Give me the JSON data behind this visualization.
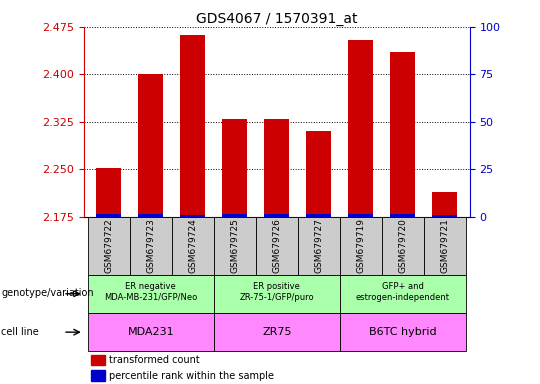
{
  "title": "GDS4067 / 1570391_at",
  "samples": [
    "GSM679722",
    "GSM679723",
    "GSM679724",
    "GSM679725",
    "GSM679726",
    "GSM679727",
    "GSM679719",
    "GSM679720",
    "GSM679721"
  ],
  "red_values": [
    2.252,
    2.4,
    2.462,
    2.33,
    2.33,
    2.31,
    2.455,
    2.435,
    2.215
  ],
  "blue_heights": [
    0.004,
    0.004,
    0.003,
    0.004,
    0.004,
    0.004,
    0.004,
    0.004,
    0.003
  ],
  "ylim_left": [
    2.175,
    2.475
  ],
  "yticks_left": [
    2.175,
    2.25,
    2.325,
    2.4,
    2.475
  ],
  "yticks_right": [
    0,
    25,
    50,
    75,
    100
  ],
  "ylim_right": [
    0,
    100
  ],
  "bar_bottom": 2.175,
  "red_color": "#cc0000",
  "blue_color": "#0000cc",
  "groups": [
    {
      "label": "ER negative\nMDA-MB-231/GFP/Neo",
      "start": 0,
      "end": 3
    },
    {
      "label": "ER positive\nZR-75-1/GFP/puro",
      "start": 3,
      "end": 6
    },
    {
      "label": "GFP+ and\nestrogen-independent",
      "start": 6,
      "end": 9
    }
  ],
  "cell_lines": [
    {
      "label": "MDA231",
      "start": 0,
      "end": 3
    },
    {
      "label": "ZR75",
      "start": 3,
      "end": 6
    },
    {
      "label": "B6TC hybrid",
      "start": 6,
      "end": 9
    }
  ],
  "legend_red": "transformed count",
  "legend_blue": "percentile rank within the sample",
  "row_label_genotype": "genotype/variation",
  "row_label_cell": "cell line",
  "left_yaxis_color": "#cc0000",
  "right_yaxis_color": "#0000cc",
  "bar_width": 0.6,
  "group_color": "#aaffaa",
  "cell_color": "#ff88ff",
  "sample_box_color": "#cccccc"
}
